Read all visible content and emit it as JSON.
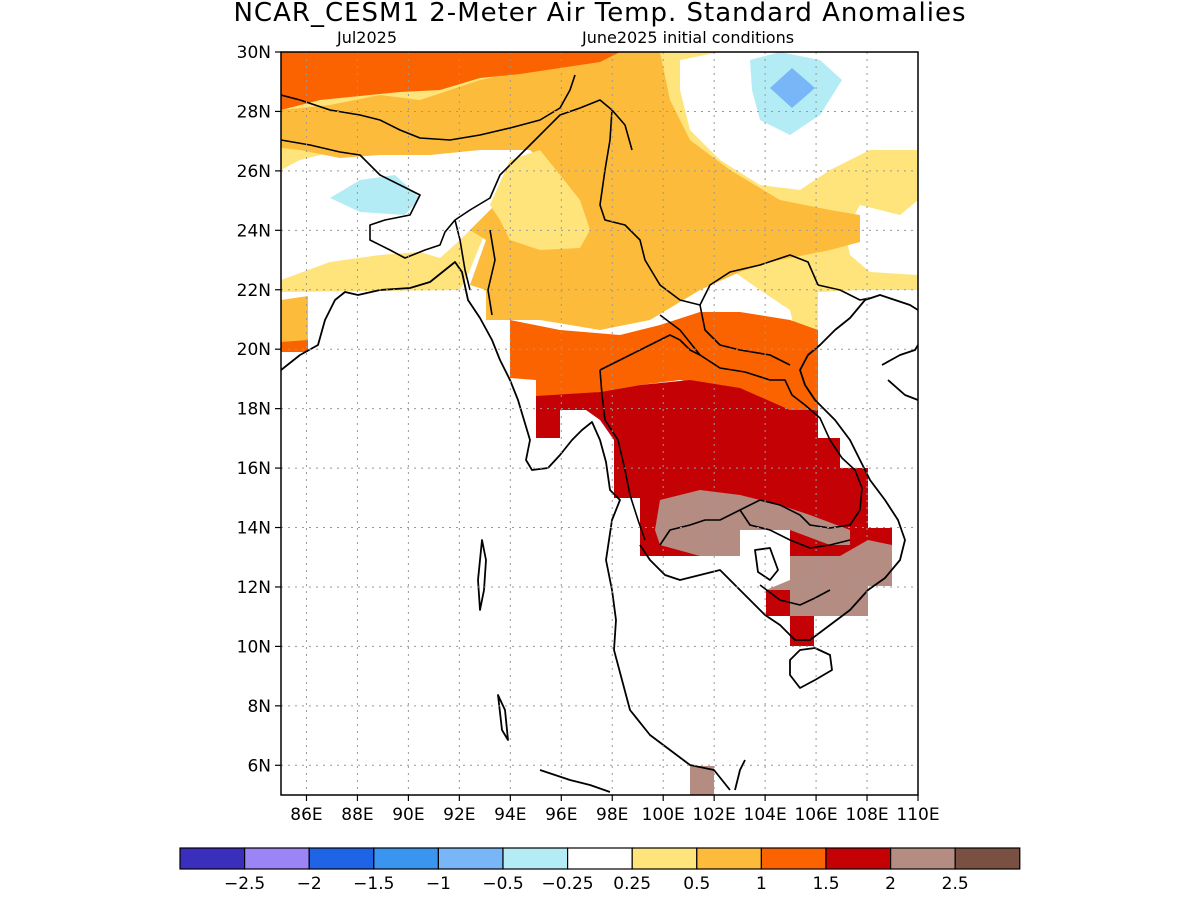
{
  "header": {
    "title": "NCAR_CESM1 2-Meter Air Temp. Standard Anomalies",
    "valid_month": "Jul2025",
    "init_label": "June2025 initial conditions"
  },
  "map": {
    "lat_ticks": [
      "30N",
      "28N",
      "26N",
      "24N",
      "22N",
      "20N",
      "18N",
      "16N",
      "14N",
      "12N",
      "10N",
      "8N",
      "6N"
    ],
    "lon_ticks": [
      "86E",
      "88E",
      "90E",
      "92E",
      "94E",
      "96E",
      "98E",
      "100E",
      "102E",
      "104E",
      "106E",
      "108E",
      "110E"
    ],
    "extent": {
      "lon_min": 85,
      "lon_max": 110,
      "lat_min": 5,
      "lat_max": 30
    },
    "gridlines": true,
    "coastlines": "country-borders"
  },
  "colorbar": {
    "colors": [
      "#3a2fbd",
      "#9b84f5",
      "#1f63e6",
      "#3a95f0",
      "#78b6f7",
      "#b4ecf6",
      "#ffffff",
      "#fee47a",
      "#fdbb3b",
      "#fb6200",
      "#c40205",
      "#b58c82",
      "#7a5043"
    ],
    "labels": [
      "-2.5",
      "-2",
      "-1.5",
      "-1",
      "-0.5",
      "-0.25",
      "0.25",
      "0.5",
      "1",
      "1.5",
      "2",
      "2.5"
    ]
  }
}
